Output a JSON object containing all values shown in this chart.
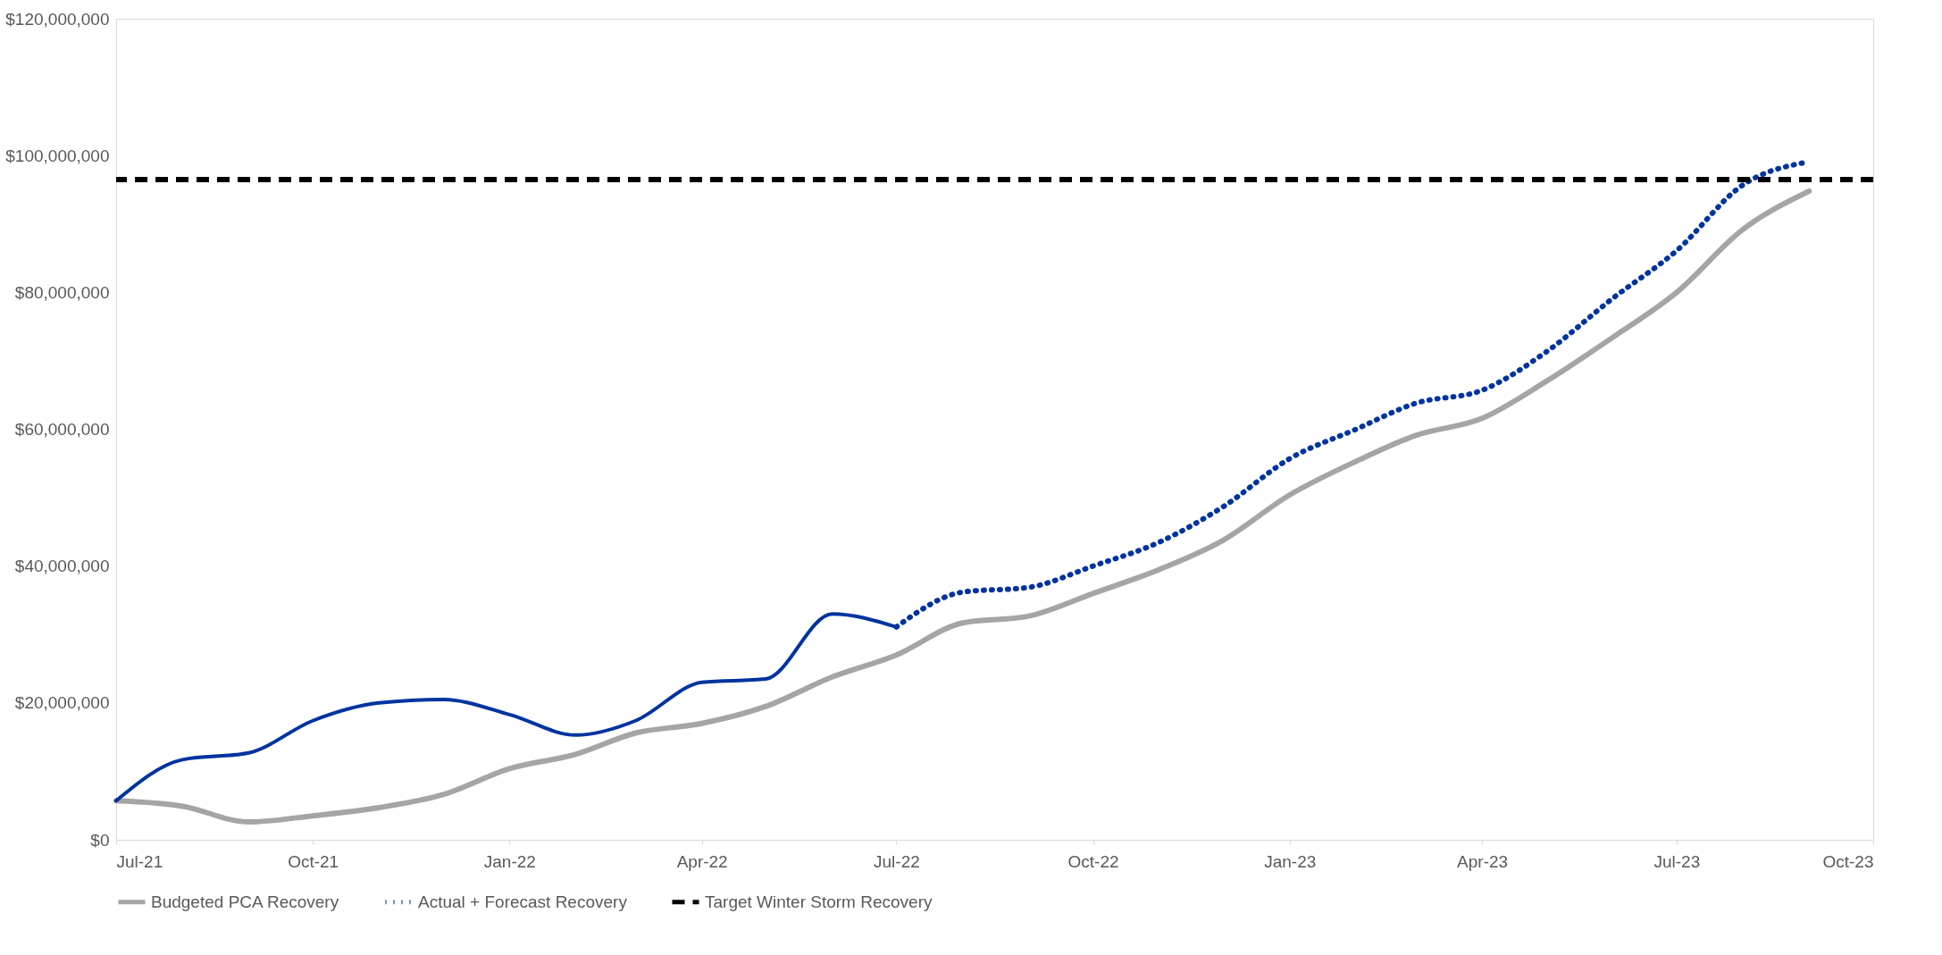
{
  "chart_data": {
    "type": "line",
    "xlim": [
      "2021-07",
      "2023-10"
    ],
    "xticks": [
      {
        "value": "2021-07",
        "label": "Jul-21"
      },
      {
        "value": "2021-10",
        "label": "Oct-21"
      },
      {
        "value": "2022-01",
        "label": "Jan-22"
      },
      {
        "value": "2022-04",
        "label": "Apr-22"
      },
      {
        "value": "2022-07",
        "label": "Jul-22"
      },
      {
        "value": "2022-10",
        "label": "Oct-22"
      },
      {
        "value": "2023-01",
        "label": "Jan-23"
      },
      {
        "value": "2023-04",
        "label": "Apr-23"
      },
      {
        "value": "2023-07",
        "label": "Jul-23"
      },
      {
        "value": "2023-10",
        "label": "Oct-23"
      }
    ],
    "ylim": [
      0,
      120000000
    ],
    "yticks": [
      {
        "value": 0,
        "label": "$0"
      },
      {
        "value": 20000000,
        "label": "$20,000,000"
      },
      {
        "value": 40000000,
        "label": "$40,000,000"
      },
      {
        "value": 60000000,
        "label": "$60,000,000"
      },
      {
        "value": 80000000,
        "label": "$80,000,000"
      },
      {
        "value": 100000000,
        "label": "$100,000,000"
      },
      {
        "value": 120000000,
        "label": "$120,000,000"
      }
    ],
    "series": [
      {
        "name": "Budgeted PCA Recovery",
        "color": "#a5a5a5",
        "line_style": "solid",
        "x": [
          "2021-07",
          "2021-08",
          "2021-09",
          "2021-10",
          "2021-11",
          "2021-12",
          "2022-01",
          "2022-02",
          "2022-03",
          "2022-04",
          "2022-05",
          "2022-06",
          "2022-07",
          "2022-08",
          "2022-09",
          "2022-10",
          "2022-11",
          "2022-12",
          "2023-01",
          "2023-02",
          "2023-03",
          "2023-04",
          "2023-05",
          "2023-06",
          "2023-07",
          "2023-08",
          "2023-09"
        ],
        "values": [
          5700000,
          4900000,
          2600000,
          3500000,
          4700000,
          6600000,
          10400000,
          12500000,
          15600000,
          17000000,
          19500000,
          23800000,
          27000000,
          31700000,
          32700000,
          36000000,
          39500000,
          43800000,
          50400000,
          55300000,
          59100000,
          61600000,
          67000000,
          73400000,
          80000000,
          89200000,
          94800000
        ]
      },
      {
        "color": "#0033a0",
        "line_style": "solid",
        "x": [
          "2021-07",
          "2021-08",
          "2021-09",
          "2021-10",
          "2021-11",
          "2021-12",
          "2022-01",
          "2022-02",
          "2022-03",
          "2022-04",
          "2022-05",
          "2022-06",
          "2022-07"
        ],
        "values": [
          5700000,
          11700000,
          12700000,
          17400000,
          20000000,
          20500000,
          18300000,
          15300000,
          17400000,
          23000000,
          23500000,
          33000000,
          31100000
        ]
      },
      {
        "name": "Actual + Forecast Recovery",
        "color": "#0033a0",
        "line_style": "dotted",
        "x": [
          "2022-07",
          "2022-08",
          "2022-09",
          "2022-10",
          "2022-11",
          "2022-12",
          "2023-01",
          "2023-02",
          "2023-03",
          "2023-04",
          "2023-05",
          "2023-06",
          "2023-07",
          "2023-08",
          "2023-09"
        ],
        "values": [
          31100000,
          36200000,
          36900000,
          40000000,
          43500000,
          48700000,
          55700000,
          60000000,
          63800000,
          65700000,
          71300000,
          79100000,
          86100000,
          95700000,
          99100000
        ]
      }
    ],
    "ref_lines": [
      {
        "axis": "y",
        "value": 96500000,
        "label": "Target Winter Storm Recovery",
        "color": "#000000",
        "line_style": "dashed"
      }
    ],
    "legend": "bottom",
    "grid": false,
    "marker": "none"
  }
}
